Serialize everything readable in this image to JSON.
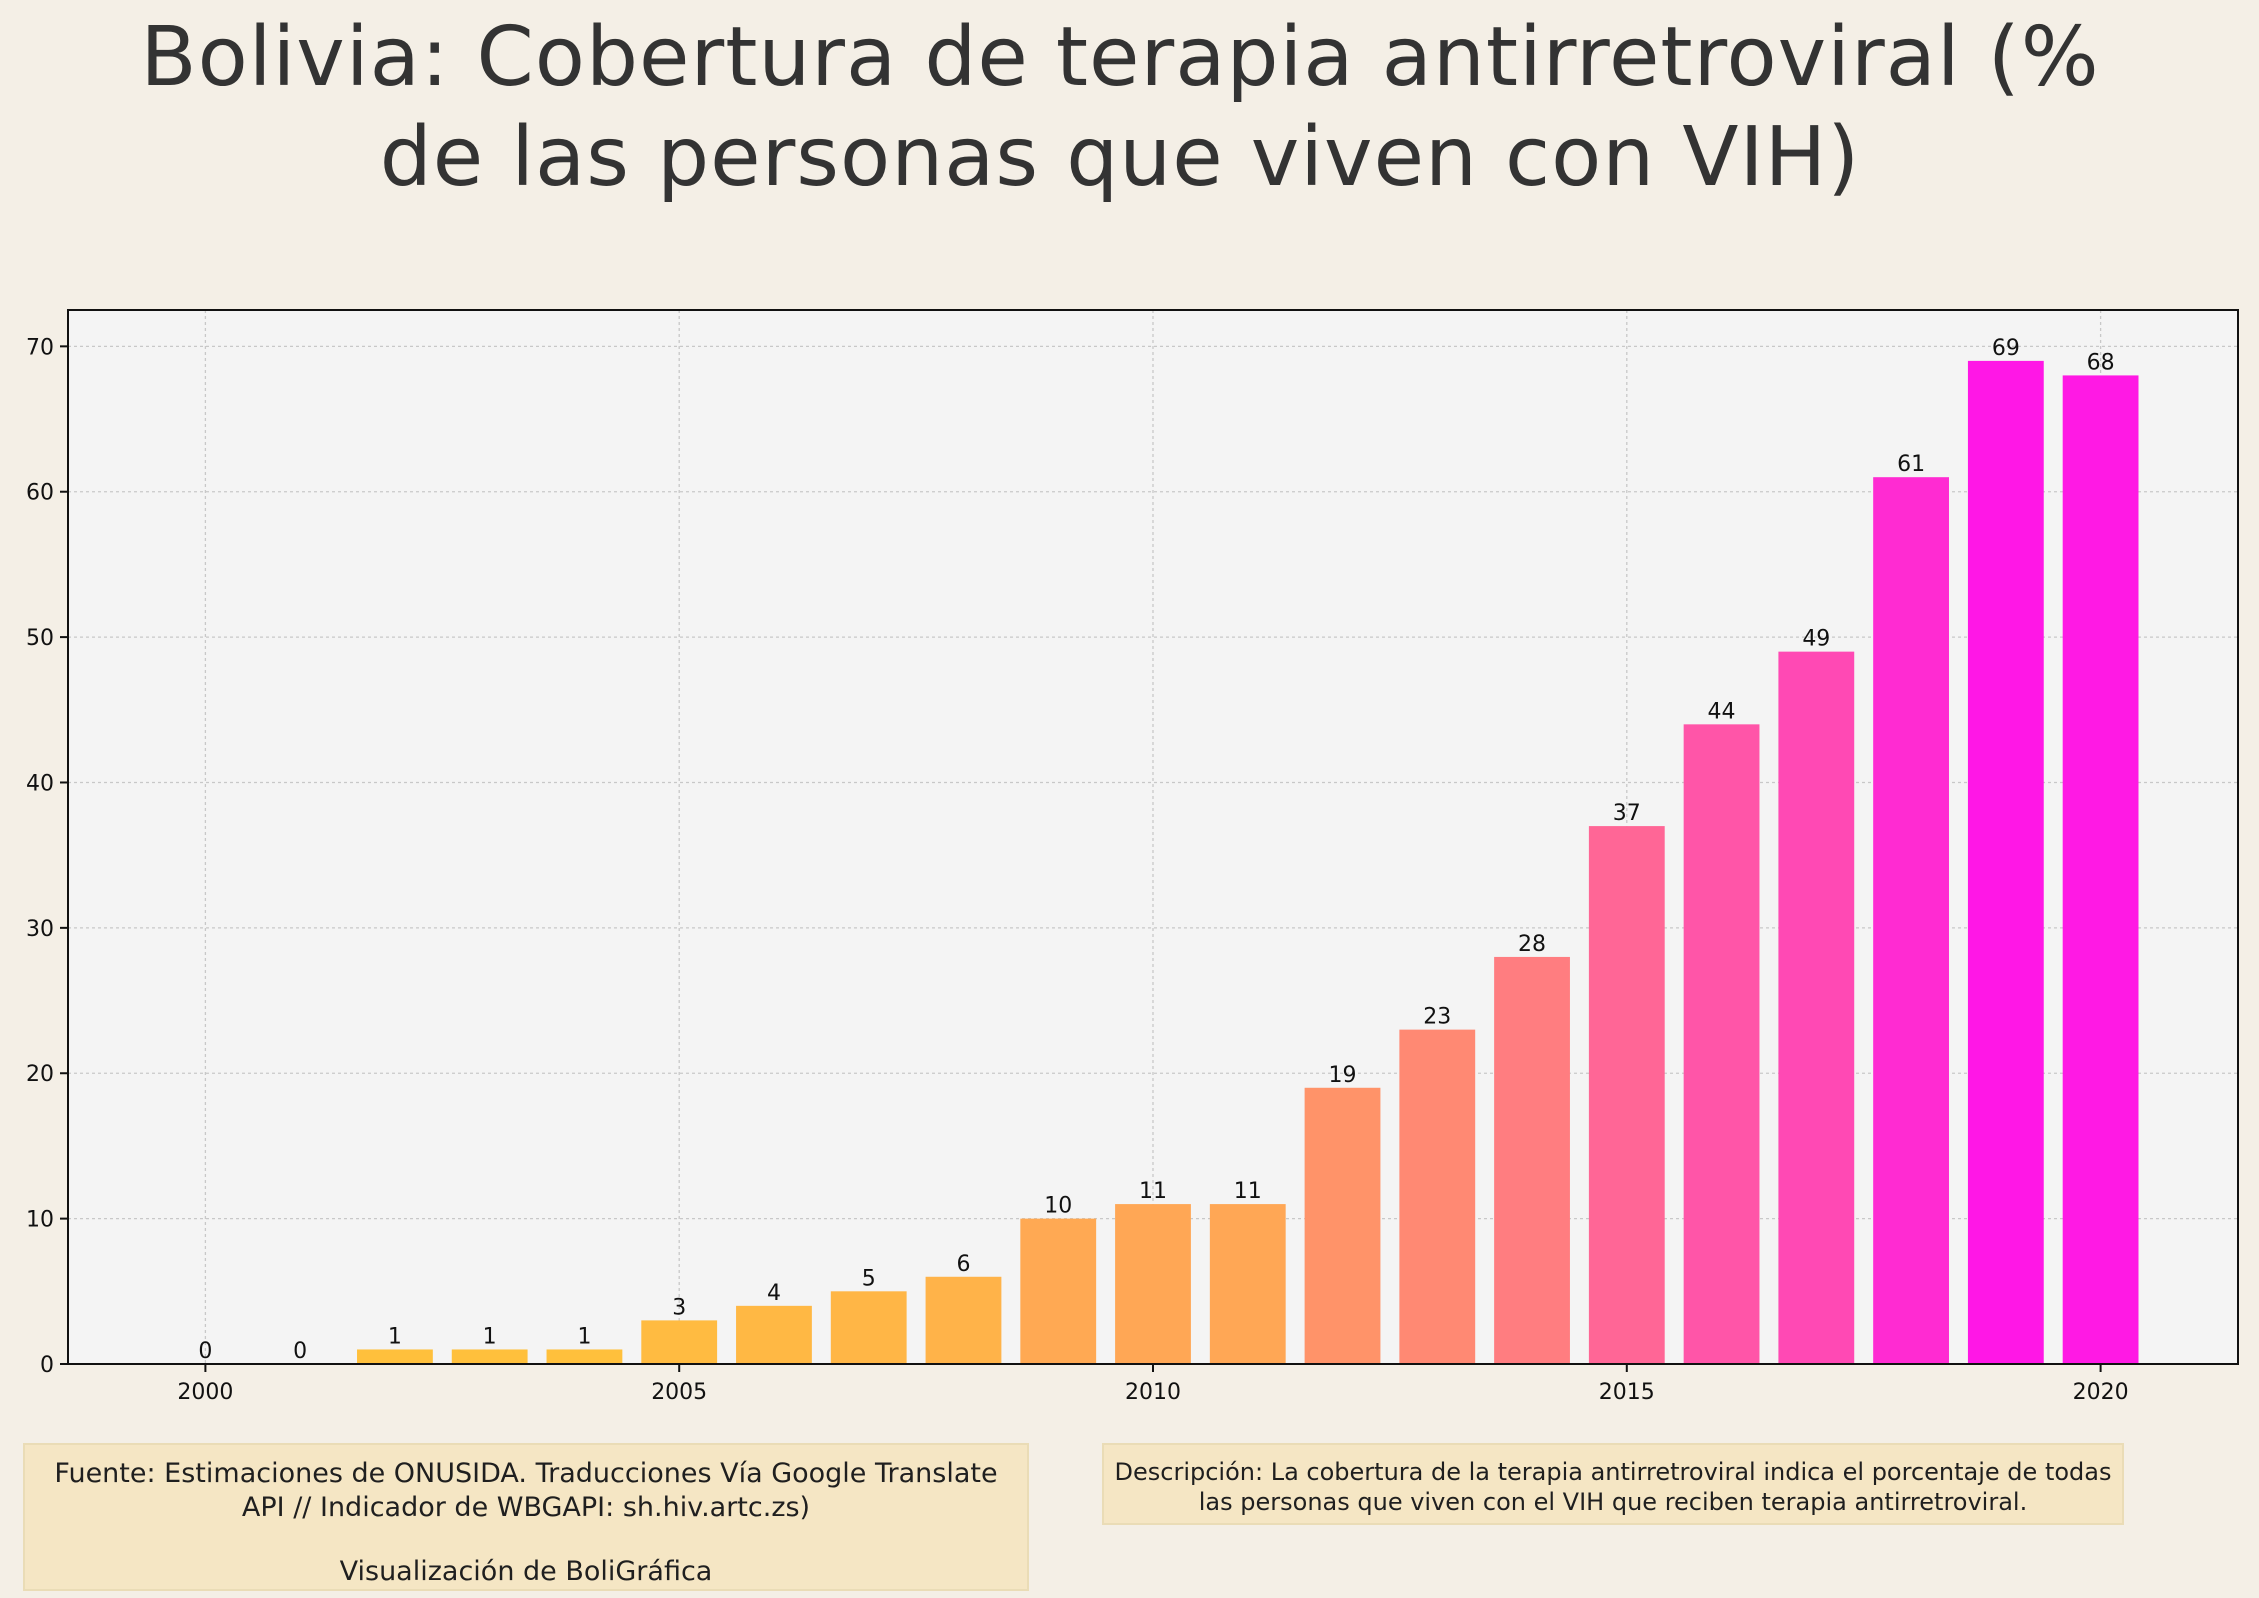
{
  "chart_data": {
    "type": "bar",
    "title": "Bolivia:  Cobertura de terapia antirretroviral (% de las personas que viven con VIH)",
    "title_lines": [
      "Bolivia:  Cobertura de terapia antirretroviral (%",
      "de las personas que viven con VIH)"
    ],
    "xlabel": "",
    "ylabel": "",
    "x": [
      2000,
      2001,
      2002,
      2003,
      2004,
      2005,
      2006,
      2007,
      2008,
      2009,
      2010,
      2011,
      2012,
      2013,
      2014,
      2015,
      2016,
      2017,
      2018,
      2019,
      2020
    ],
    "values": [
      0,
      0,
      1,
      1,
      1,
      3,
      4,
      5,
      6,
      10,
      11,
      11,
      19,
      23,
      28,
      37,
      44,
      49,
      61,
      69,
      68
    ],
    "x_ticks": [
      2000,
      2005,
      2010,
      2015,
      2020
    ],
    "y_ticks": [
      0,
      10,
      20,
      30,
      40,
      50,
      60,
      70
    ],
    "xlim": [
      1998.55,
      2021.45
    ],
    "ylim": [
      0,
      72.5
    ],
    "grid": true,
    "legend": "none",
    "color_scale": {
      "low": "#ffc23a",
      "high": "#ff17e6"
    }
  },
  "notes": {
    "source_lines": [
      "Fuente: Estimaciones de ONUSIDA. Traducciones Vía Google Translate",
      "API // Indicador de WBGAPI: sh.hiv.artc.zs)"
    ],
    "credit": "Visualización de BoliGráfica",
    "description_lines": [
      "Descripción: La cobertura de la terapia antirretroviral indica el porcentaje de todas",
      "las personas que viven con el VIH que reciben terapia antirretroviral."
    ]
  }
}
